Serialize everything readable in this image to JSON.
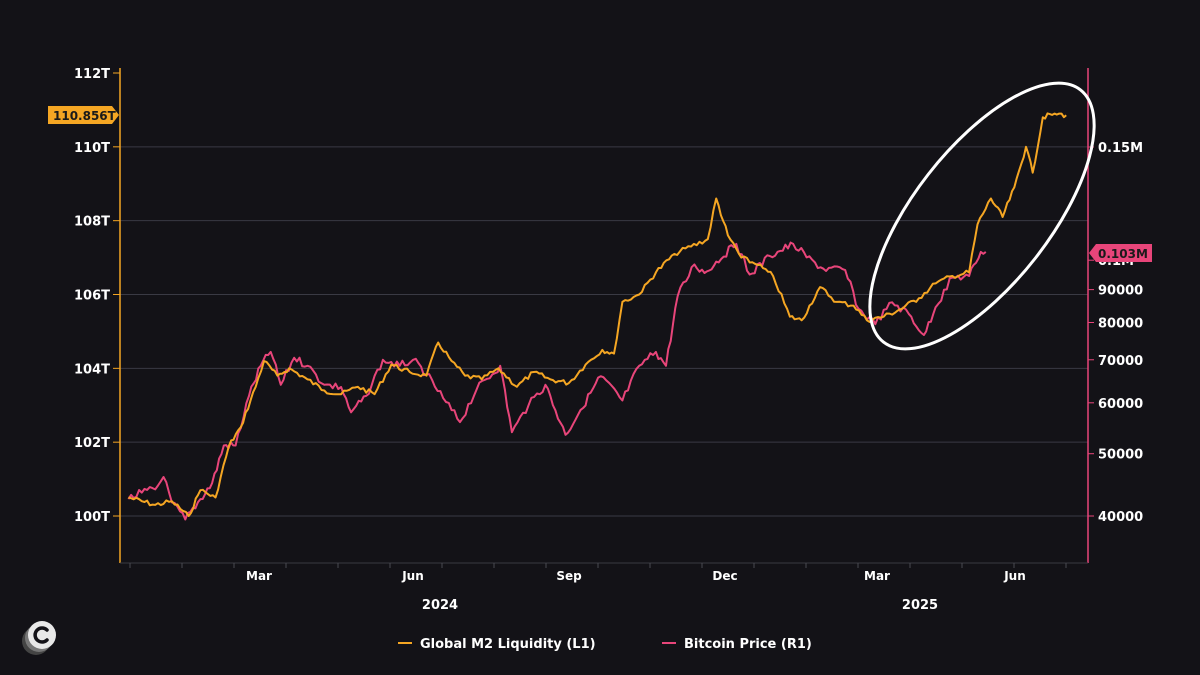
{
  "chart_data": {
    "type": "line",
    "title": "",
    "left_axis": {
      "ticks": [
        {
          "value": 100,
          "label": "100T"
        },
        {
          "value": 102,
          "label": "102T"
        },
        {
          "value": 104,
          "label": "104T"
        },
        {
          "value": 106,
          "label": "106T"
        },
        {
          "value": 108,
          "label": "108T"
        },
        {
          "value": 110,
          "label": "110T"
        },
        {
          "value": 112,
          "label": "112T"
        }
      ],
      "range": [
        98.7,
        112
      ],
      "current_value_label": "110.856T",
      "current_value": 110.856,
      "color": "#F5A623"
    },
    "right_axis": {
      "scale": "log",
      "ticks": [
        {
          "value": 40000,
          "label": "40000"
        },
        {
          "value": 50000,
          "label": "50000"
        },
        {
          "value": 60000,
          "label": "60000"
        },
        {
          "value": 70000,
          "label": "70000"
        },
        {
          "value": 80000,
          "label": "80000"
        },
        {
          "value": 90000,
          "label": "90000"
        },
        {
          "value": 100000,
          "label": "0.1M"
        },
        {
          "value": 150000,
          "label": "0.15M"
        }
      ],
      "current_value_label": "0.103M",
      "current_value": 103000,
      "color": "#E8457A"
    },
    "x_axis": {
      "month_labels": [
        "Mar",
        "Jun",
        "Sep",
        "Dec",
        "Mar",
        "Jun"
      ],
      "year_labels": [
        "2024",
        "2025"
      ]
    },
    "grid": true,
    "legend_position": "bottom",
    "series": [
      {
        "name": "Global M2 Liquidity (L1)",
        "color": "#F5A623",
        "axis": "left",
        "points": [
          [
            "2023-12-20",
            100.5
          ],
          [
            "2023-12-28",
            100.4
          ],
          [
            "2024-01-05",
            100.3
          ],
          [
            "2024-01-15",
            100.4
          ],
          [
            "2024-01-25",
            100.0
          ],
          [
            "2024-02-01",
            100.7
          ],
          [
            "2024-02-10",
            100.5
          ],
          [
            "2024-02-18",
            101.9
          ],
          [
            "2024-02-25",
            102.4
          ],
          [
            "2024-03-05",
            103.5
          ],
          [
            "2024-03-10",
            104.2
          ],
          [
            "2024-03-18",
            103.8
          ],
          [
            "2024-03-25",
            104.0
          ],
          [
            "2024-04-05",
            103.7
          ],
          [
            "2024-04-15",
            103.4
          ],
          [
            "2024-04-25",
            103.3
          ],
          [
            "2024-05-05",
            103.5
          ],
          [
            "2024-05-15",
            103.3
          ],
          [
            "2024-05-25",
            104.1
          ],
          [
            "2024-06-05",
            103.9
          ],
          [
            "2024-06-15",
            103.8
          ],
          [
            "2024-06-22",
            104.7
          ],
          [
            "2024-06-30",
            104.2
          ],
          [
            "2024-07-08",
            103.8
          ],
          [
            "2024-07-18",
            103.7
          ],
          [
            "2024-07-28",
            104.0
          ],
          [
            "2024-08-08",
            103.5
          ],
          [
            "2024-08-18",
            103.9
          ],
          [
            "2024-08-28",
            103.7
          ],
          [
            "2024-09-08",
            103.6
          ],
          [
            "2024-09-18",
            104.1
          ],
          [
            "2024-09-28",
            104.5
          ],
          [
            "2024-10-05",
            104.4
          ],
          [
            "2024-10-10",
            105.8
          ],
          [
            "2024-10-20",
            106.0
          ],
          [
            "2024-10-30",
            106.6
          ],
          [
            "2024-11-10",
            107.1
          ],
          [
            "2024-11-20",
            107.3
          ],
          [
            "2024-11-30",
            107.5
          ],
          [
            "2024-12-05",
            108.6
          ],
          [
            "2024-12-12",
            107.6
          ],
          [
            "2024-12-20",
            107.0
          ],
          [
            "2024-12-30",
            106.8
          ],
          [
            "2025-01-08",
            106.5
          ],
          [
            "2025-01-18",
            105.4
          ],
          [
            "2025-01-25",
            105.3
          ],
          [
            "2025-02-05",
            106.2
          ],
          [
            "2025-02-15",
            105.8
          ],
          [
            "2025-02-25",
            105.7
          ],
          [
            "2025-03-05",
            105.3
          ],
          [
            "2025-03-15",
            105.4
          ],
          [
            "2025-03-25",
            105.6
          ],
          [
            "2025-04-05",
            105.9
          ],
          [
            "2025-04-15",
            106.3
          ],
          [
            "2025-04-25",
            106.5
          ],
          [
            "2025-05-05",
            106.6
          ],
          [
            "2025-05-10",
            107.9
          ],
          [
            "2025-05-18",
            108.6
          ],
          [
            "2025-05-25",
            108.1
          ],
          [
            "2025-06-01",
            108.9
          ],
          [
            "2025-06-08",
            110.0
          ],
          [
            "2025-06-12",
            109.3
          ],
          [
            "2025-06-18",
            110.8
          ],
          [
            "2025-06-25",
            110.9
          ],
          [
            "2025-07-02",
            110.856
          ]
        ]
      },
      {
        "name": "Bitcoin Price (R1)",
        "color": "#E8457A",
        "axis": "right",
        "points": [
          [
            "2023-12-20",
            42500
          ],
          [
            "2023-12-28",
            43500
          ],
          [
            "2024-01-05",
            44000
          ],
          [
            "2024-01-10",
            46000
          ],
          [
            "2024-01-15",
            42000
          ],
          [
            "2024-01-23",
            39500
          ],
          [
            "2024-02-01",
            42500
          ],
          [
            "2024-02-08",
            45000
          ],
          [
            "2024-02-15",
            51500
          ],
          [
            "2024-02-22",
            51500
          ],
          [
            "2024-03-01",
            61500
          ],
          [
            "2024-03-08",
            68500
          ],
          [
            "2024-03-14",
            72000
          ],
          [
            "2024-03-20",
            64000
          ],
          [
            "2024-03-28",
            70500
          ],
          [
            "2024-04-05",
            68500
          ],
          [
            "2024-04-15",
            64000
          ],
          [
            "2024-04-25",
            63500
          ],
          [
            "2024-05-01",
            58000
          ],
          [
            "2024-05-10",
            61500
          ],
          [
            "2024-05-20",
            70000
          ],
          [
            "2024-05-30",
            68500
          ],
          [
            "2024-06-07",
            70000
          ],
          [
            "2024-06-15",
            66500
          ],
          [
            "2024-06-25",
            61000
          ],
          [
            "2024-07-05",
            56000
          ],
          [
            "2024-07-15",
            63000
          ],
          [
            "2024-07-29",
            68500
          ],
          [
            "2024-08-05",
            54000
          ],
          [
            "2024-08-15",
            59500
          ],
          [
            "2024-08-25",
            64000
          ],
          [
            "2024-09-06",
            53500
          ],
          [
            "2024-09-15",
            58500
          ],
          [
            "2024-09-27",
            66000
          ],
          [
            "2024-10-10",
            60500
          ],
          [
            "2024-10-20",
            68500
          ],
          [
            "2024-10-30",
            72000
          ],
          [
            "2024-11-05",
            68500
          ],
          [
            "2024-11-12",
            88000
          ],
          [
            "2024-11-22",
            98500
          ],
          [
            "2024-11-28",
            95500
          ],
          [
            "2024-12-05",
            99500
          ],
          [
            "2024-12-17",
            106000
          ],
          [
            "2024-12-25",
            95000
          ],
          [
            "2025-01-06",
            101500
          ],
          [
            "2025-01-20",
            106000
          ],
          [
            "2025-01-28",
            101000
          ],
          [
            "2025-02-07",
            97000
          ],
          [
            "2025-02-20",
            96500
          ],
          [
            "2025-02-28",
            84000
          ],
          [
            "2025-03-10",
            79500
          ],
          [
            "2025-03-20",
            86000
          ],
          [
            "2025-03-30",
            82500
          ],
          [
            "2025-04-08",
            76500
          ],
          [
            "2025-04-15",
            84500
          ],
          [
            "2025-04-25",
            94000
          ],
          [
            "2025-05-05",
            94500
          ],
          [
            "2025-05-12",
            103000
          ],
          [
            "2025-05-15",
            103000
          ]
        ]
      }
    ]
  },
  "legend": {
    "items": [
      {
        "label": "Global M2 Liquidity (L1)",
        "color": "#F5A623"
      },
      {
        "label": "Bitcoin Price (R1)",
        "color": "#E8457A"
      }
    ]
  }
}
